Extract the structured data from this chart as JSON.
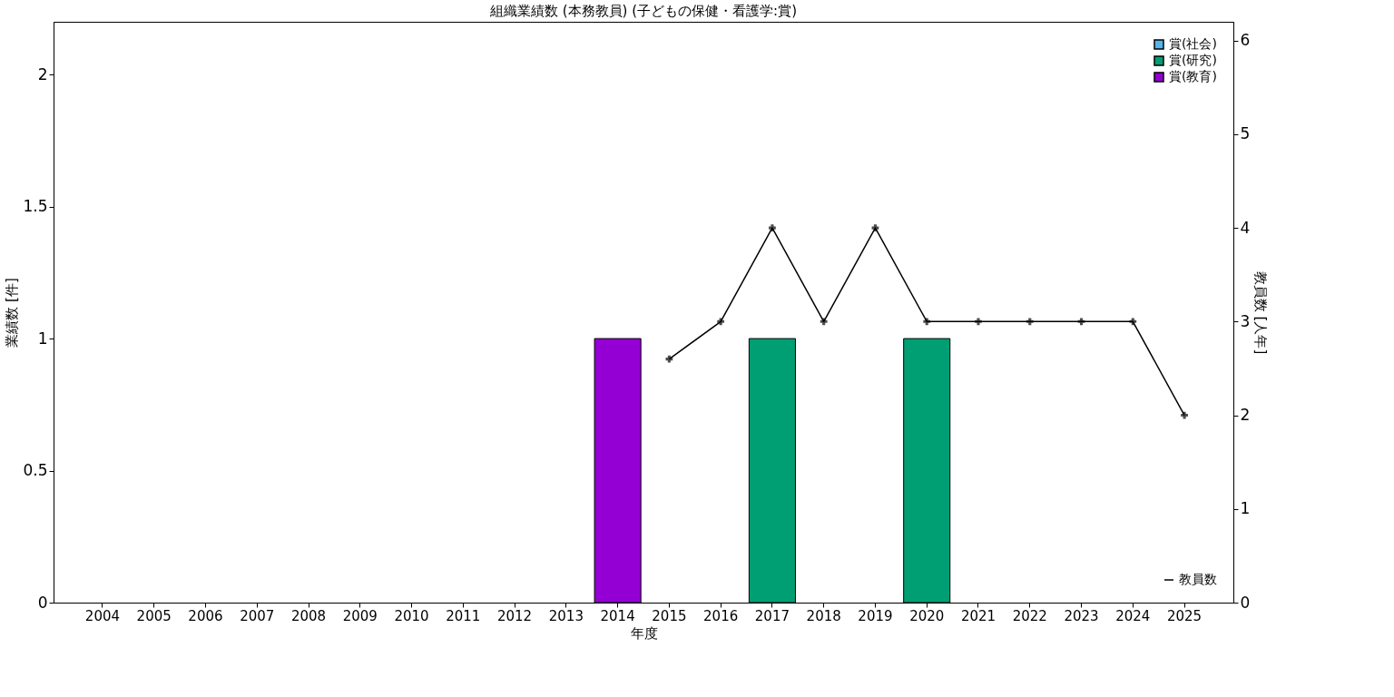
{
  "chart_data": {
    "type": "bar",
    "title": "組織業績数 (本務教員) (子どもの保健・看護学:賞)",
    "xlabel": "年度",
    "ylabel": "業績数 [件]",
    "y2label": "教員数 [人年]",
    "categories": [
      "2004",
      "2005",
      "2006",
      "2007",
      "2008",
      "2009",
      "2010",
      "2011",
      "2012",
      "2013",
      "2014",
      "2015",
      "2016",
      "2017",
      "2018",
      "2019",
      "2020",
      "2021",
      "2022",
      "2023",
      "2024",
      "2025"
    ],
    "stacked": true,
    "series": [
      {
        "name": "賞(社会)",
        "color": "#56b4e9",
        "values": [
          0,
          0,
          0,
          0,
          0,
          0,
          0,
          0,
          0,
          0,
          0,
          0,
          0,
          0,
          0,
          0,
          0,
          0,
          0,
          0,
          0,
          0
        ]
      },
      {
        "name": "賞(研究)",
        "color": "#009e73",
        "values": [
          0,
          0,
          0,
          0,
          0,
          0,
          0,
          0,
          0,
          0,
          0,
          0,
          0,
          1,
          0,
          0,
          1,
          0,
          0,
          0,
          0,
          0
        ]
      },
      {
        "name": "賞(教育)",
        "color": "#9400d3",
        "values": [
          0,
          0,
          0,
          0,
          0,
          0,
          0,
          0,
          0,
          0,
          1,
          0,
          0,
          0,
          0,
          0,
          0,
          0,
          0,
          0,
          0,
          0
        ]
      },
      {
        "name": "教員数",
        "color": "#000000",
        "type": "line",
        "axis": "y2",
        "marker": "cross",
        "line_style": "solid",
        "values": [
          null,
          null,
          null,
          null,
          null,
          null,
          null,
          null,
          null,
          null,
          null,
          2.6,
          3,
          4,
          3,
          4,
          3,
          3,
          3,
          3,
          3,
          2
        ]
      }
    ],
    "ylim": [
      0,
      2.2
    ],
    "yticks": [
      0,
      0.5,
      1,
      1.5,
      2
    ],
    "y2lim": [
      0,
      6.2
    ],
    "y2ticks": [
      0,
      1,
      2,
      3,
      4,
      5,
      6
    ],
    "grid": false,
    "legend": "top right"
  }
}
